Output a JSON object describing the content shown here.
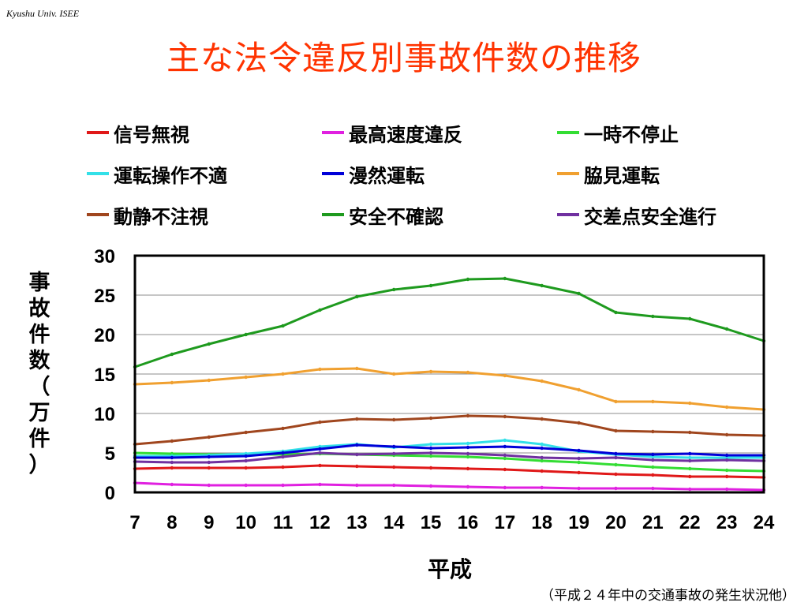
{
  "header": {
    "tag": "Kyushu Univ. ISEE"
  },
  "slide": {
    "title": "主な法令違反別事故件数の推移"
  },
  "source_note": "（平成２４年中の交通事故の発生状況他）",
  "chart_data": {
    "type": "line",
    "xlabel": "平成",
    "ylabel": "事故件数（万件）",
    "x": [
      7,
      8,
      9,
      10,
      11,
      12,
      13,
      14,
      15,
      16,
      17,
      18,
      19,
      20,
      21,
      22,
      23,
      24
    ],
    "ylim": [
      0,
      30
    ],
    "yticks": [
      0,
      5,
      10,
      15,
      20,
      25,
      30
    ],
    "grid": true,
    "legend_position": "top",
    "series": [
      {
        "name": "信号無視",
        "color": "#e01818",
        "values": [
          3.0,
          3.1,
          3.1,
          3.1,
          3.2,
          3.4,
          3.3,
          3.2,
          3.1,
          3.0,
          2.9,
          2.7,
          2.5,
          2.3,
          2.2,
          2.0,
          2.0,
          1.9
        ]
      },
      {
        "name": "最高速度違反",
        "color": "#e020e0",
        "values": [
          1.2,
          1.0,
          0.9,
          0.9,
          0.9,
          1.0,
          0.9,
          0.9,
          0.8,
          0.7,
          0.6,
          0.6,
          0.5,
          0.5,
          0.5,
          0.4,
          0.4,
          0.3
        ]
      },
      {
        "name": "一時不停止",
        "color": "#33dd33",
        "values": [
          5.0,
          4.9,
          4.8,
          4.8,
          4.8,
          4.9,
          4.8,
          4.7,
          4.6,
          4.5,
          4.3,
          4.0,
          3.8,
          3.5,
          3.2,
          3.0,
          2.8,
          2.7
        ]
      },
      {
        "name": "運転操作不適",
        "color": "#33e0e8",
        "values": [
          4.6,
          4.6,
          4.7,
          4.9,
          5.2,
          5.8,
          6.1,
          5.7,
          6.1,
          6.2,
          6.6,
          6.1,
          5.2,
          4.8,
          4.5,
          4.4,
          4.4,
          4.4
        ]
      },
      {
        "name": "漫然運転",
        "color": "#0000d8",
        "values": [
          4.4,
          4.4,
          4.5,
          4.6,
          5.0,
          5.5,
          6.0,
          5.8,
          5.6,
          5.7,
          5.8,
          5.6,
          5.3,
          4.9,
          4.8,
          4.9,
          4.7,
          4.7
        ]
      },
      {
        "name": "脇見運転",
        "color": "#f0a030",
        "values": [
          13.7,
          13.9,
          14.2,
          14.6,
          15.0,
          15.6,
          15.7,
          15.0,
          15.3,
          15.2,
          14.8,
          14.1,
          13.0,
          11.5,
          11.5,
          11.3,
          10.8,
          10.5
        ]
      },
      {
        "name": "動静不注視",
        "color": "#a0461e",
        "values": [
          6.1,
          6.5,
          7.0,
          7.6,
          8.1,
          8.9,
          9.3,
          9.2,
          9.4,
          9.7,
          9.6,
          9.3,
          8.8,
          7.8,
          7.7,
          7.6,
          7.3,
          7.2
        ]
      },
      {
        "name": "安全不確認",
        "color": "#1e9a1e",
        "values": [
          15.9,
          17.5,
          18.8,
          20.0,
          21.1,
          23.1,
          24.8,
          25.7,
          26.2,
          27.0,
          27.1,
          26.2,
          25.2,
          22.8,
          22.3,
          22.0,
          20.7,
          19.2
        ]
      },
      {
        "name": "交差点安全進行",
        "color": "#7030a0",
        "values": [
          3.9,
          3.8,
          3.8,
          4.0,
          4.5,
          5.0,
          4.8,
          4.9,
          5.0,
          4.9,
          4.7,
          4.4,
          4.3,
          4.4,
          4.1,
          4.0,
          4.1,
          4.0
        ]
      }
    ]
  }
}
